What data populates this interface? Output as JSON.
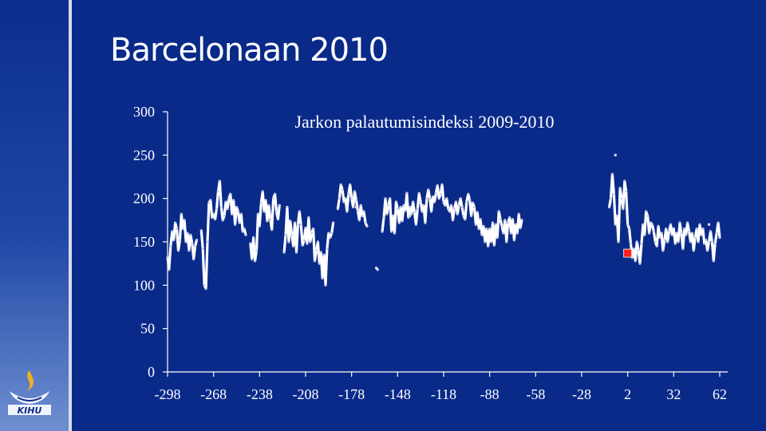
{
  "slide": {
    "title": "Barcelonaan 2010"
  },
  "logo": {
    "text": "KIHU"
  },
  "colors": {
    "background": "#0a2a8a",
    "series": "#ffffff",
    "marker": "#ff2020"
  },
  "chart_data": {
    "type": "line",
    "title": "Jarkon palautumisindeksi 2009-2010",
    "xlabel": "",
    "ylabel": "",
    "xlim": [
      -298,
      72
    ],
    "ylim": [
      0,
      300
    ],
    "x_ticks": [
      -298,
      -268,
      -238,
      -208,
      -178,
      -148,
      -118,
      -88,
      -58,
      -28,
      2,
      32,
      62
    ],
    "y_ticks": [
      0,
      50,
      100,
      150,
      200,
      250,
      300
    ],
    "grid": false,
    "legend": "none",
    "series": [
      {
        "name": "",
        "points": [
          [
            -298,
            132
          ],
          [
            -297,
            118
          ],
          [
            -296,
            145
          ],
          [
            -295,
            162
          ],
          [
            -294,
            152
          ],
          [
            -293,
            172
          ],
          [
            -292,
            165
          ],
          [
            -291,
            140
          ],
          [
            -290,
            152
          ],
          [
            -289,
            182
          ],
          [
            -288,
            165
          ],
          [
            -287,
            175
          ],
          [
            -286,
            150
          ],
          [
            -285,
            160
          ],
          [
            -284,
            140
          ],
          [
            -283,
            158
          ],
          [
            -282,
            148
          ],
          [
            -281,
            130
          ],
          [
            -280,
            145
          ],
          [
            -279,
            152
          ],
          [
            -276,
            163
          ],
          [
            -275,
            142
          ],
          [
            -274,
            100
          ],
          [
            -273,
            96
          ],
          [
            -272,
            150
          ],
          [
            -271,
            195
          ],
          [
            -270,
            198
          ],
          [
            -269,
            178
          ],
          [
            -268,
            182
          ],
          [
            -267,
            176
          ],
          [
            -266,
            188
          ],
          [
            -265,
            208
          ],
          [
            -264,
            220
          ],
          [
            -263,
            190
          ],
          [
            -262,
            175
          ],
          [
            -261,
            180
          ],
          [
            -260,
            196
          ],
          [
            -259,
            188
          ],
          [
            -258,
            200
          ],
          [
            -257,
            205
          ],
          [
            -256,
            182
          ],
          [
            -255,
            198
          ],
          [
            -254,
            170
          ],
          [
            -253,
            190
          ],
          [
            -252,
            185
          ],
          [
            -251,
            172
          ],
          [
            -250,
            182
          ],
          [
            -249,
            162
          ],
          [
            -248,
            165
          ],
          [
            -247,
            158
          ],
          [
            -244,
            148
          ],
          [
            -243,
            130
          ],
          [
            -242,
            155
          ],
          [
            -241,
            128
          ],
          [
            -240,
            140
          ],
          [
            -239,
            182
          ],
          [
            -238,
            168
          ],
          [
            -237,
            195
          ],
          [
            -236,
            208
          ],
          [
            -235,
            185
          ],
          [
            -234,
            198
          ],
          [
            -233,
            174
          ],
          [
            -232,
            192
          ],
          [
            -231,
            176
          ],
          [
            -230,
            164
          ],
          [
            -229,
            200
          ],
          [
            -228,
            205
          ],
          [
            -227,
            185
          ],
          [
            -226,
            176
          ],
          [
            -225,
            192
          ],
          [
            -222,
            138
          ],
          [
            -221,
            158
          ],
          [
            -220,
            190
          ],
          [
            -219,
            150
          ],
          [
            -218,
            174
          ],
          [
            -217,
            158
          ],
          [
            -216,
            145
          ],
          [
            -215,
            172
          ],
          [
            -214,
            138
          ],
          [
            -213,
            170
          ],
          [
            -212,
            185
          ],
          [
            -211,
            170
          ],
          [
            -210,
            146
          ],
          [
            -209,
            152
          ],
          [
            -208,
            166
          ],
          [
            -207,
            148
          ],
          [
            -206,
            178
          ],
          [
            -205,
            150
          ],
          [
            -204,
            160
          ],
          [
            -203,
            165
          ],
          [
            -202,
            128
          ],
          [
            -201,
            140
          ],
          [
            -200,
            150
          ],
          [
            -199,
            125
          ],
          [
            -198,
            138
          ],
          [
            -197,
            108
          ],
          [
            -196,
            135
          ],
          [
            -195,
            100
          ],
          [
            -194,
            142
          ],
          [
            -193,
            160
          ],
          [
            -192,
            155
          ],
          [
            -191,
            160
          ],
          [
            -190,
            172
          ],
          [
            -187,
            188
          ],
          [
            -186,
            200
          ],
          [
            -185,
            216
          ],
          [
            -184,
            210
          ],
          [
            -183,
            196
          ],
          [
            -182,
            200
          ],
          [
            -181,
            185
          ],
          [
            -180,
            205
          ],
          [
            -179,
            216
          ],
          [
            -178,
            200
          ],
          [
            -177,
            190
          ],
          [
            -176,
            208
          ],
          [
            -175,
            198
          ],
          [
            -174,
            186
          ],
          [
            -173,
            175
          ],
          [
            -172,
            192
          ],
          [
            -171,
            180
          ],
          [
            -170,
            185
          ],
          [
            -169,
            172
          ],
          [
            -168,
            168
          ],
          [
            -162,
            120
          ],
          [
            -161,
            118
          ],
          [
            -158,
            162
          ],
          [
            -157,
            178
          ],
          [
            -156,
            200
          ],
          [
            -155,
            182
          ],
          [
            -154,
            192
          ],
          [
            -153,
            200
          ],
          [
            -152,
            162
          ],
          [
            -151,
            180
          ],
          [
            -150,
            160
          ],
          [
            -149,
            196
          ],
          [
            -148,
            188
          ],
          [
            -147,
            172
          ],
          [
            -146,
            190
          ],
          [
            -145,
            174
          ],
          [
            -144,
            192
          ],
          [
            -143,
            186
          ],
          [
            -142,
            206
          ],
          [
            -141,
            178
          ],
          [
            -140,
            190
          ],
          [
            -139,
            182
          ],
          [
            -138,
            196
          ],
          [
            -137,
            184
          ],
          [
            -136,
            170
          ],
          [
            -135,
            188
          ],
          [
            -134,
            206
          ],
          [
            -133,
            196
          ],
          [
            -132,
            185
          ],
          [
            -131,
            192
          ],
          [
            -130,
            172
          ],
          [
            -129,
            200
          ],
          [
            -128,
            210
          ],
          [
            -127,
            200
          ],
          [
            -126,
            185
          ],
          [
            -125,
            202
          ],
          [
            -124,
            196
          ],
          [
            -123,
            206
          ],
          [
            -122,
            215
          ],
          [
            -121,
            200
          ],
          [
            -120,
            205
          ],
          [
            -119,
            216
          ],
          [
            -118,
            196
          ],
          [
            -117,
            192
          ],
          [
            -116,
            200
          ],
          [
            -115,
            188
          ],
          [
            -114,
            185
          ],
          [
            -113,
            192
          ],
          [
            -112,
            175
          ],
          [
            -111,
            188
          ],
          [
            -110,
            196
          ],
          [
            -109,
            182
          ],
          [
            -108,
            192
          ],
          [
            -107,
            200
          ],
          [
            -106,
            190
          ],
          [
            -105,
            180
          ],
          [
            -104,
            176
          ],
          [
            -103,
            196
          ],
          [
            -102,
            205
          ],
          [
            -101,
            198
          ],
          [
            -100,
            180
          ],
          [
            -99,
            195
          ],
          [
            -98,
            190
          ],
          [
            -97,
            170
          ],
          [
            -96,
            184
          ],
          [
            -95,
            165
          ],
          [
            -94,
            176
          ],
          [
            -93,
            158
          ],
          [
            -92,
            168
          ],
          [
            -91,
            150
          ],
          [
            -90,
            165
          ],
          [
            -89,
            145
          ],
          [
            -88,
            165
          ],
          [
            -87,
            150
          ],
          [
            -86,
            172
          ],
          [
            -85,
            146
          ],
          [
            -84,
            170
          ],
          [
            -83,
            155
          ],
          [
            -82,
            185
          ],
          [
            -81,
            176
          ],
          [
            -80,
            168
          ],
          [
            -79,
            160
          ],
          [
            -78,
            175
          ],
          [
            -77,
            150
          ],
          [
            -76,
            172
          ],
          [
            -75,
            178
          ],
          [
            -74,
            160
          ],
          [
            -73,
            176
          ],
          [
            -72,
            152
          ],
          [
            -71,
            170
          ],
          [
            -70,
            160
          ],
          [
            -69,
            182
          ],
          [
            -68,
            166
          ],
          [
            -67,
            175
          ]
        ]
      },
      {
        "name": "",
        "points": [
          [
            -10,
            190
          ],
          [
            -9,
            200
          ],
          [
            -8,
            228
          ],
          [
            -7,
            205
          ],
          [
            -6,
            170
          ],
          [
            -5,
            180
          ],
          [
            -4,
            150
          ],
          [
            -3,
            212
          ],
          [
            -2,
            200
          ],
          [
            -1,
            188
          ],
          [
            0,
            220
          ],
          [
            1,
            208
          ],
          [
            2,
            170
          ],
          [
            3,
            165
          ],
          [
            4,
            148
          ],
          [
            5,
            132
          ],
          [
            6,
            142
          ],
          [
            7,
            128
          ],
          [
            8,
            150
          ],
          [
            9,
            140
          ],
          [
            10,
            125
          ],
          [
            11,
            148
          ],
          [
            12,
            170
          ],
          [
            13,
            158
          ],
          [
            14,
            185
          ],
          [
            15,
            180
          ],
          [
            16,
            160
          ],
          [
            17,
            172
          ],
          [
            18,
            170
          ],
          [
            19,
            162
          ],
          [
            20,
            150
          ],
          [
            21,
            145
          ],
          [
            22,
            168
          ],
          [
            23,
            155
          ],
          [
            24,
            160
          ],
          [
            25,
            140
          ],
          [
            26,
            152
          ],
          [
            27,
            165
          ],
          [
            28,
            150
          ],
          [
            29,
            162
          ],
          [
            30,
            170
          ],
          [
            31,
            158
          ],
          [
            32,
            165
          ],
          [
            33,
            148
          ],
          [
            34,
            160
          ],
          [
            35,
            150
          ],
          [
            36,
            172
          ],
          [
            37,
            160
          ],
          [
            38,
            142
          ],
          [
            39,
            165
          ],
          [
            40,
            158
          ],
          [
            41,
            172
          ],
          [
            42,
            162
          ],
          [
            43,
            150
          ],
          [
            44,
            160
          ],
          [
            45,
            140
          ],
          [
            46,
            155
          ],
          [
            47,
            165
          ],
          [
            48,
            150
          ],
          [
            49,
            170
          ],
          [
            50,
            158
          ],
          [
            51,
            165
          ],
          [
            52,
            148
          ],
          [
            53,
            152
          ],
          [
            54,
            140
          ],
          [
            55,
            150
          ],
          [
            56,
            162
          ],
          [
            57,
            150
          ],
          [
            58,
            128
          ],
          [
            59,
            148
          ],
          [
            60,
            160
          ],
          [
            61,
            172
          ],
          [
            62,
            155
          ]
        ]
      }
    ],
    "outliers": [
      [
        -6,
        250
      ],
      [
        -175,
        190
      ],
      [
        -140,
        180
      ],
      [
        32,
        165
      ],
      [
        55,
        170
      ]
    ],
    "highlight_point": [
      2,
      137
    ]
  }
}
